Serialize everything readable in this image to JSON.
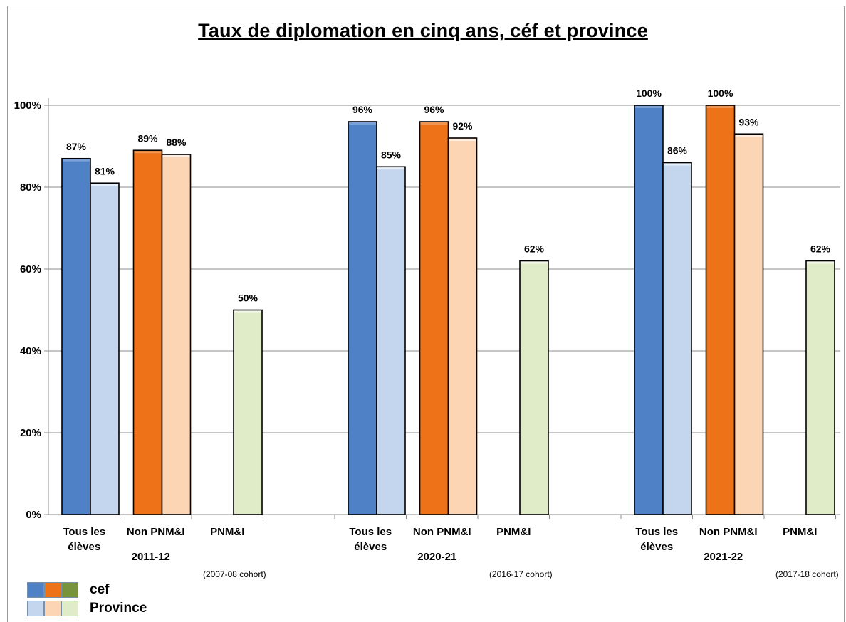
{
  "chart_data": {
    "type": "bar",
    "title": "Taux de diplomation en cinq ans, céf et province",
    "ylim": [
      0,
      100
    ],
    "yticks": [
      "0%",
      "20%",
      "40%",
      "60%",
      "80%",
      "100%"
    ],
    "grid": true,
    "legend_position": "bottom-left",
    "groups": [
      {
        "year": "2011-12",
        "cohort": "(2007-08 cohort)",
        "categories": [
          {
            "label": [
              "Tous les",
              "élèves"
            ],
            "cef": 87,
            "province": 81
          },
          {
            "label": [
              "Non PNM&I"
            ],
            "cef": 89,
            "province": 88
          },
          {
            "label": [
              "PNM&I"
            ],
            "cef": null,
            "province": 50
          }
        ]
      },
      {
        "year": "2020-21",
        "cohort": "(2016-17 cohort)",
        "categories": [
          {
            "label": [
              "Tous les",
              "élèves"
            ],
            "cef": 96,
            "province": 85
          },
          {
            "label": [
              "Non PNM&I"
            ],
            "cef": 96,
            "province": 92
          },
          {
            "label": [
              "PNM&I"
            ],
            "cef": null,
            "province": 62
          }
        ]
      },
      {
        "year": "2021-22",
        "cohort": "(2017-18 cohort)",
        "categories": [
          {
            "label": [
              "Tous les",
              "élèves"
            ],
            "cef": 100,
            "province": 86
          },
          {
            "label": [
              "Non PNM&I"
            ],
            "cef": 100,
            "province": 93
          },
          {
            "label": [
              "PNM&I"
            ],
            "cef": null,
            "province": 62
          }
        ]
      }
    ],
    "series": [
      {
        "name": "cef"
      },
      {
        "name": "Province"
      }
    ],
    "colors": {
      "cef": [
        "#4f81c7",
        "#ed7218",
        "#77933c"
      ],
      "province": [
        "#c3d6ee",
        "#fcd5b5",
        "#e0ecc8"
      ]
    }
  }
}
